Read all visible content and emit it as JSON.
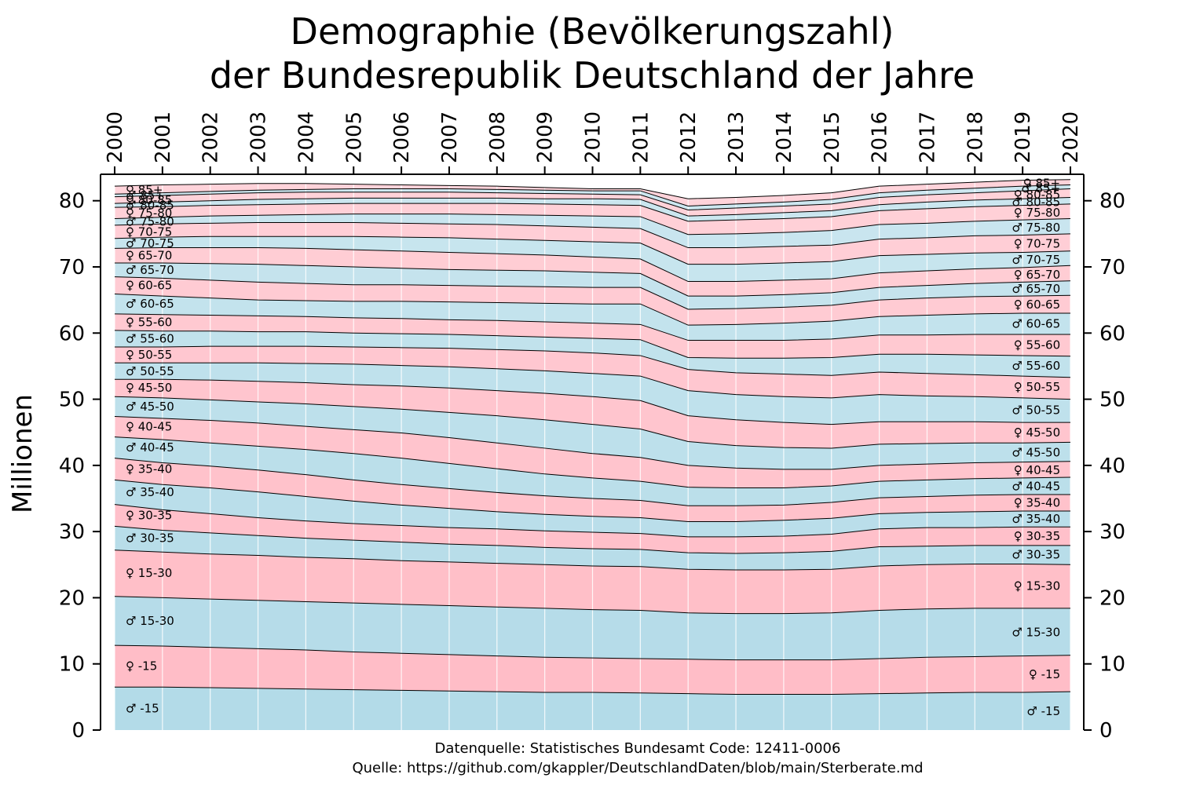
{
  "chart_data": {
    "type": "area",
    "title": [
      "Demographie (Bevölkerungszahl)",
      "der Bundesrepublik Deutschland der Jahre"
    ],
    "ylabel": "Millionen",
    "x": [
      2000,
      2001,
      2002,
      2003,
      2004,
      2005,
      2006,
      2007,
      2008,
      2009,
      2010,
      2011,
      2012,
      2013,
      2014,
      2015,
      2016,
      2017,
      2018,
      2019,
      2020
    ],
    "x_tick_labels": [
      "2000",
      "2001",
      "2002",
      "2003",
      "2004",
      "2005",
      "2006",
      "2007",
      "2008",
      "2009",
      "2010",
      "2011",
      "2012",
      "2013",
      "2014",
      "2015",
      "2016",
      "2017",
      "2018",
      "2019",
      "2020"
    ],
    "y_ticks": [
      0,
      10,
      20,
      30,
      40,
      50,
      60,
      70,
      80
    ],
    "y_tick_labels": [
      "0",
      "10",
      "20",
      "30",
      "40",
      "50",
      "60",
      "70",
      "80"
    ],
    "ylim": [
      0,
      84
    ],
    "xlim": [
      2000,
      2020
    ],
    "stacked": true,
    "grid": "vertical",
    "colors": {
      "male": "#add8e6",
      "female": "#ffb6c1"
    },
    "series": [
      {
        "name": "♂ -15",
        "label_left": "♂ -15",
        "label_right": "♂ -15",
        "color": "#add8e6",
        "cumulative": [
          6.5,
          6.5,
          6.4,
          6.3,
          6.2,
          6.1,
          6.0,
          5.9,
          5.8,
          5.7,
          5.7,
          5.6,
          5.5,
          5.4,
          5.4,
          5.4,
          5.5,
          5.6,
          5.7,
          5.7,
          5.8
        ]
      },
      {
        "name": "♀ -15",
        "label_left": "♀ -15",
        "label_right": "♀ -15",
        "color": "#ffb6c1",
        "cumulative": [
          12.8,
          12.7,
          12.5,
          12.3,
          12.1,
          11.8,
          11.6,
          11.4,
          11.2,
          11.0,
          10.9,
          10.8,
          10.7,
          10.6,
          10.6,
          10.6,
          10.8,
          11.0,
          11.1,
          11.2,
          11.3
        ]
      },
      {
        "name": "♂ 15-30",
        "label_left": "♂ 15-30",
        "label_right": "♂ 15-30",
        "color": "#add8e6",
        "cumulative": [
          20.2,
          20.0,
          19.8,
          19.6,
          19.4,
          19.2,
          19.0,
          18.8,
          18.6,
          18.4,
          18.2,
          18.1,
          17.7,
          17.6,
          17.6,
          17.7,
          18.1,
          18.3,
          18.4,
          18.4,
          18.4
        ]
      },
      {
        "name": "♀ 15-30",
        "label_left": "♀ 15-30",
        "label_right": "♀ 15-30",
        "color": "#ffb6c1",
        "cumulative": [
          27.2,
          26.9,
          26.6,
          26.4,
          26.1,
          25.9,
          25.6,
          25.4,
          25.2,
          25.0,
          24.8,
          24.7,
          24.3,
          24.2,
          24.2,
          24.3,
          24.8,
          25.0,
          25.1,
          25.1,
          25.0
        ]
      },
      {
        "name": "♂ 30-35",
        "label_left": "♂ 30-35",
        "label_right": "♂ 30-35",
        "color": "#add8e6",
        "cumulative": [
          30.8,
          30.2,
          29.8,
          29.4,
          29.0,
          28.7,
          28.4,
          28.1,
          27.9,
          27.6,
          27.4,
          27.3,
          26.8,
          26.7,
          26.8,
          27.0,
          27.7,
          27.8,
          27.9,
          27.9,
          27.9
        ]
      },
      {
        "name": "♀ 30-35",
        "label_left": "♀ 30-35",
        "label_right": "♀ 30-35",
        "color": "#ffb6c1",
        "cumulative": [
          34.1,
          33.3,
          32.7,
          32.1,
          31.6,
          31.2,
          30.9,
          30.6,
          30.4,
          30.1,
          29.9,
          29.7,
          29.2,
          29.2,
          29.3,
          29.6,
          30.4,
          30.6,
          30.6,
          30.7,
          30.7
        ]
      },
      {
        "name": "♂ 35-40",
        "label_left": "♂ 35-40",
        "label_right": "♂ 35-40",
        "color": "#add8e6",
        "cumulative": [
          37.8,
          37.1,
          36.6,
          36.0,
          35.3,
          34.6,
          34.0,
          33.5,
          33.0,
          32.6,
          32.3,
          32.1,
          31.5,
          31.5,
          31.7,
          32.0,
          32.7,
          32.9,
          33.0,
          33.1,
          33.1
        ]
      },
      {
        "name": "♀ 35-40",
        "label_left": "♀ 35-40",
        "label_right": "♀ 35-40",
        "color": "#ffb6c1",
        "cumulative": [
          41.1,
          40.4,
          39.9,
          39.3,
          38.6,
          37.8,
          37.1,
          36.5,
          35.9,
          35.4,
          35.0,
          34.7,
          33.9,
          33.9,
          34.0,
          34.4,
          35.1,
          35.3,
          35.5,
          35.6,
          35.6
        ]
      },
      {
        "name": "♂ 40-45",
        "label_left": "♂ 40-45",
        "label_right": "♂ 40-45",
        "color": "#add8e6",
        "cumulative": [
          44.3,
          43.9,
          43.4,
          42.9,
          42.4,
          41.8,
          41.1,
          40.3,
          39.5,
          38.7,
          38.1,
          37.6,
          36.7,
          36.6,
          36.6,
          36.9,
          37.6,
          37.8,
          38.0,
          38.1,
          38.2
        ]
      },
      {
        "name": "♀ 40-45",
        "label_left": "♀ 40-45",
        "label_right": "♀ 40-45",
        "color": "#ffb6c1",
        "cumulative": [
          47.4,
          47.1,
          46.8,
          46.4,
          45.9,
          45.4,
          44.9,
          44.2,
          43.4,
          42.6,
          41.8,
          41.2,
          40.0,
          39.6,
          39.4,
          39.4,
          40.0,
          40.2,
          40.4,
          40.5,
          40.6
        ]
      },
      {
        "name": "♂ 45-50",
        "label_left": "♂ 45-50",
        "label_right": "♂ 45-50",
        "color": "#add8e6",
        "cumulative": [
          50.4,
          50.2,
          49.9,
          49.6,
          49.3,
          48.9,
          48.5,
          48.0,
          47.5,
          46.9,
          46.2,
          45.5,
          43.6,
          43.0,
          42.7,
          42.6,
          43.2,
          43.3,
          43.4,
          43.4,
          43.5
        ]
      },
      {
        "name": "♀ 45-50",
        "label_left": "♀ 45-50",
        "label_right": "♀ 45-50",
        "color": "#ffb6c1",
        "cumulative": [
          53.0,
          53.0,
          52.9,
          52.7,
          52.5,
          52.2,
          52.0,
          51.7,
          51.3,
          50.9,
          50.4,
          49.8,
          47.5,
          46.9,
          46.5,
          46.2,
          46.6,
          46.6,
          46.6,
          46.5,
          46.5
        ]
      },
      {
        "name": "♂ 50-55",
        "label_left": "♂ 50-55",
        "label_right": "♂ 50-55",
        "color": "#add8e6",
        "cumulative": [
          55.5,
          55.5,
          55.5,
          55.5,
          55.4,
          55.3,
          55.1,
          54.9,
          54.6,
          54.3,
          53.9,
          53.5,
          51.3,
          50.7,
          50.4,
          50.2,
          50.7,
          50.5,
          50.4,
          50.2,
          50.0
        ]
      },
      {
        "name": "♀ 50-55",
        "label_left": "♀ 50-55",
        "label_right": "♀ 50-55",
        "color": "#ffb6c1",
        "cumulative": [
          57.9,
          57.9,
          58.0,
          58.0,
          58.0,
          57.9,
          57.8,
          57.7,
          57.5,
          57.3,
          57.0,
          56.6,
          54.5,
          54.0,
          53.8,
          53.6,
          54.1,
          53.9,
          53.7,
          53.5,
          53.3
        ]
      },
      {
        "name": "♂ 55-60",
        "label_left": "♂ 55-60",
        "label_right": "♂ 55-60",
        "color": "#add8e6",
        "cumulative": [
          60.4,
          60.3,
          60.3,
          60.2,
          60.2,
          60.0,
          59.9,
          59.8,
          59.6,
          59.4,
          59.2,
          59.0,
          56.3,
          56.2,
          56.2,
          56.3,
          56.8,
          56.8,
          56.7,
          56.6,
          56.5
        ]
      },
      {
        "name": "♀ 55-60",
        "label_left": "♀ 55-60",
        "label_right": "♀ 55-60",
        "color": "#ffb6c1",
        "cumulative": [
          62.9,
          62.8,
          62.7,
          62.6,
          62.5,
          62.3,
          62.2,
          62.0,
          61.9,
          61.7,
          61.5,
          61.3,
          58.9,
          58.9,
          58.9,
          59.1,
          59.7,
          59.7,
          59.8,
          59.8,
          59.8
        ]
      },
      {
        "name": "♂ 60-65",
        "label_left": "♂ 60-65",
        "label_right": "♂ 60-65",
        "color": "#add8e6",
        "cumulative": [
          65.9,
          65.6,
          65.3,
          65.0,
          64.9,
          64.8,
          64.8,
          64.7,
          64.6,
          64.5,
          64.4,
          64.4,
          61.2,
          61.3,
          61.5,
          61.8,
          62.5,
          62.7,
          62.9,
          63.0,
          63.0
        ]
      },
      {
        "name": "♀ 60-65",
        "label_left": "♀ 60-65",
        "label_right": "♀ 60-65",
        "color": "#ffb6c1",
        "cumulative": [
          68.5,
          68.3,
          68.0,
          67.7,
          67.5,
          67.3,
          67.3,
          67.2,
          67.1,
          67.0,
          66.9,
          66.9,
          63.6,
          63.7,
          63.9,
          64.2,
          65.0,
          65.3,
          65.5,
          65.6,
          65.7
        ]
      },
      {
        "name": "♂ 65-70",
        "label_left": "♂ 65-70",
        "label_right": "♂ 65-70",
        "color": "#add8e6",
        "cumulative": [
          70.6,
          70.6,
          70.5,
          70.4,
          70.2,
          70.0,
          69.8,
          69.6,
          69.5,
          69.4,
          69.2,
          69.0,
          65.6,
          65.6,
          65.8,
          66.1,
          66.9,
          67.2,
          67.5,
          67.7,
          67.9
        ]
      },
      {
        "name": "♀ 65-70",
        "label_left": "♀ 65-70",
        "label_right": "♀ 65-70",
        "color": "#ffb6c1",
        "cumulative": [
          72.8,
          72.9,
          72.9,
          72.9,
          72.8,
          72.6,
          72.4,
          72.2,
          72.0,
          71.8,
          71.5,
          71.2,
          67.8,
          67.8,
          68.0,
          68.2,
          69.1,
          69.4,
          69.7,
          69.9,
          70.2
        ]
      },
      {
        "name": "♂ 70-75",
        "label_left": "♂ 70-75",
        "label_right": "♂ 70-75",
        "color": "#add8e6",
        "cumulative": [
          74.3,
          74.5,
          74.6,
          74.6,
          74.6,
          74.6,
          74.5,
          74.4,
          74.2,
          74.0,
          73.8,
          73.6,
          70.4,
          70.4,
          70.6,
          70.8,
          71.7,
          71.9,
          72.1,
          72.2,
          72.4
        ]
      },
      {
        "name": "♀ 70-75",
        "label_left": "♀ 70-75",
        "label_right": "♀ 70-75",
        "color": "#ffb6c1",
        "cumulative": [
          76.3,
          76.5,
          76.6,
          76.7,
          76.7,
          76.7,
          76.6,
          76.5,
          76.4,
          76.2,
          76.0,
          75.8,
          72.9,
          72.9,
          73.1,
          73.3,
          74.2,
          74.4,
          74.7,
          74.8,
          75.0
        ]
      },
      {
        "name": "♂ 75-80",
        "label_left": "♂ 75-80",
        "label_right": "♂ 75-80",
        "color": "#add8e6",
        "cumulative": [
          77.3,
          77.5,
          77.7,
          77.8,
          77.9,
          78.0,
          78.0,
          78.0,
          77.9,
          77.8,
          77.7,
          77.6,
          74.9,
          75.0,
          75.2,
          75.5,
          76.4,
          76.6,
          76.9,
          77.1,
          77.3
        ]
      },
      {
        "name": "♀ 75-80",
        "label_left": "♀ 75-80",
        "label_right": "♀ 75-80",
        "color": "#ffb6c1",
        "cumulative": [
          79.0,
          79.1,
          79.3,
          79.4,
          79.5,
          79.6,
          79.6,
          79.6,
          79.6,
          79.5,
          79.4,
          79.3,
          76.9,
          77.1,
          77.3,
          77.6,
          78.5,
          78.8,
          79.1,
          79.3,
          79.5
        ]
      },
      {
        "name": "♂ 80-85",
        "label_left": "♂ 80-85",
        "label_right": "♂ 80-85",
        "color": "#add8e6",
        "cumulative": [
          79.6,
          79.8,
          80.0,
          80.2,
          80.3,
          80.4,
          80.4,
          80.4,
          80.4,
          80.3,
          80.3,
          80.2,
          77.7,
          77.9,
          78.2,
          78.5,
          79.4,
          79.8,
          80.1,
          80.3,
          80.5
        ]
      },
      {
        "name": "♀ 80-85",
        "label_left": "♀ 80-85",
        "label_right": "♀ 80-85",
        "color": "#ffb6c1",
        "cumulative": [
          80.6,
          80.8,
          81.0,
          81.2,
          81.3,
          81.3,
          81.3,
          81.3,
          81.2,
          81.1,
          81.0,
          80.9,
          78.6,
          78.9,
          79.2,
          79.5,
          80.5,
          80.9,
          81.2,
          81.5,
          81.8
        ]
      },
      {
        "name": "♂ 85+",
        "label_left": "♂ 85+",
        "label_right": "♂ 85+",
        "color": "#add8e6",
        "cumulative": [
          81.0,
          81.2,
          81.4,
          81.6,
          81.7,
          81.8,
          81.8,
          81.8,
          81.7,
          81.6,
          81.5,
          81.5,
          79.2,
          79.5,
          79.8,
          80.2,
          81.2,
          81.6,
          81.9,
          82.2,
          82.4
        ]
      },
      {
        "name": "♀ 85+",
        "label_left": "♀ 85+",
        "label_right": "♀ 85+",
        "color": "#ffb6c1",
        "cumulative": [
          82.2,
          82.4,
          82.5,
          82.6,
          82.6,
          82.5,
          82.4,
          82.3,
          82.2,
          82.0,
          81.8,
          81.8,
          80.3,
          80.5,
          80.8,
          81.2,
          82.2,
          82.5,
          82.8,
          83.1,
          83.2
        ]
      }
    ],
    "source_lines": [
      "Datenquelle: Statistisches Bundesamt Code: 12411-0006",
      "Quelle: https://github.com/gkappler/DeutschlandDaten/blob/main/Sterberate.md"
    ]
  }
}
